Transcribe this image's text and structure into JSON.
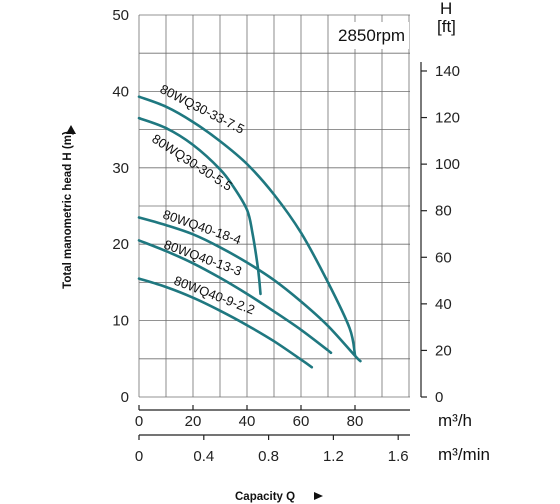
{
  "chart_data": {
    "type": "line",
    "speed_label": "2850rpm",
    "ylabel": "Total manometric head H (m)",
    "y_unit_right_top": "H",
    "y_unit_right_bottom": "[ft]",
    "xlabel": "Capacity Q",
    "x_unit_primary": "m³/h",
    "x_unit_secondary": "m³/min",
    "ylim": [
      0,
      50
    ],
    "xlim": [
      0,
      100
    ],
    "grid": true,
    "y_ticks_m": [
      0,
      10,
      20,
      30,
      40,
      50
    ],
    "y_ticks_ft": [
      0,
      20,
      40,
      60,
      80,
      100,
      120,
      140
    ],
    "x_ticks_m3h": [
      0,
      20,
      40,
      60,
      80
    ],
    "x_ticks_m3min": [
      "0",
      "0.4",
      "0.8",
      "1.2",
      "1.6"
    ],
    "series_color": "#1f7880",
    "series": [
      {
        "name": "80WQ30-33-7.5",
        "x": [
          0,
          10,
          20,
          30,
          40,
          50,
          60,
          70,
          78,
          80
        ],
        "y": [
          39.3,
          38,
          36,
          33.5,
          30.5,
          26.5,
          21.5,
          15,
          9,
          5.5
        ]
      },
      {
        "name": "80WQ30-30-5.5",
        "x": [
          0,
          10,
          20,
          30,
          35,
          40,
          42,
          44,
          45
        ],
        "y": [
          36.5,
          35.2,
          33,
          29.8,
          27.5,
          24.5,
          21.5,
          17,
          13.5
        ]
      },
      {
        "name": "80WQ40-18-4",
        "x": [
          0,
          10,
          20,
          30,
          40,
          50,
          60,
          70,
          80,
          82
        ],
        "y": [
          23.5,
          22.5,
          21.3,
          19.6,
          17.6,
          15.3,
          12.5,
          9.3,
          5.4,
          4.7
        ]
      },
      {
        "name": "80WQ40-13-3",
        "x": [
          0,
          10,
          20,
          30,
          40,
          50,
          60,
          70,
          71
        ],
        "y": [
          20.5,
          19.1,
          17.5,
          15.6,
          13.5,
          11.2,
          8.8,
          6.1,
          5.8
        ]
      },
      {
        "name": "80WQ40-9-2.2",
        "x": [
          0,
          10,
          20,
          30,
          40,
          50,
          60,
          64
        ],
        "y": [
          15.5,
          14.4,
          13.0,
          11.3,
          9.4,
          7.3,
          4.9,
          3.9
        ]
      }
    ]
  }
}
